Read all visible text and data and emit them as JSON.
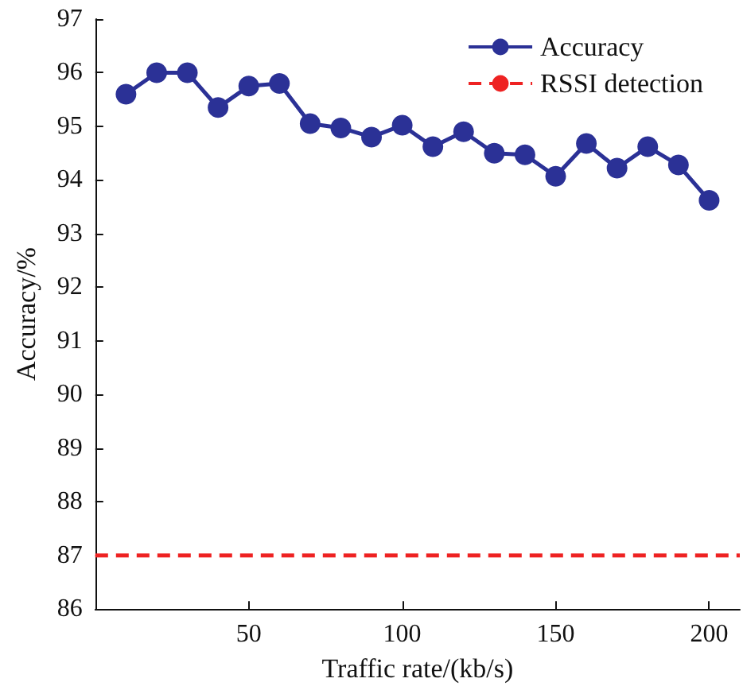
{
  "chart_data": {
    "type": "line",
    "xlabel": "Traffic rate/(kb/s)",
    "ylabel": "Accuracy/%",
    "x": [
      10,
      20,
      30,
      40,
      50,
      60,
      70,
      80,
      90,
      100,
      110,
      120,
      130,
      140,
      150,
      160,
      170,
      180,
      190,
      200
    ],
    "series": [
      {
        "name": "Accuracy",
        "color": "#2b3196",
        "marker": "circle",
        "line_style": "solid",
        "values": [
          95.6,
          96.0,
          96.0,
          95.35,
          95.75,
          95.8,
          95.05,
          94.97,
          94.8,
          95.02,
          94.62,
          94.9,
          94.5,
          94.47,
          94.07,
          94.68,
          94.22,
          94.62,
          94.28,
          93.62
        ]
      },
      {
        "name": "RSSI detection",
        "color": "#ee2222",
        "marker": "none",
        "line_style": "dashed",
        "x": [
          0,
          210
        ],
        "values": [
          87,
          87
        ]
      }
    ],
    "xlim": [
      0,
      210
    ],
    "xticks": [
      50,
      100,
      150,
      200
    ],
    "ylim": [
      86,
      97
    ],
    "yticks": [
      86,
      87,
      88,
      89,
      90,
      91,
      92,
      93,
      94,
      95,
      96,
      97
    ],
    "grid": false,
    "legend": "top right"
  }
}
